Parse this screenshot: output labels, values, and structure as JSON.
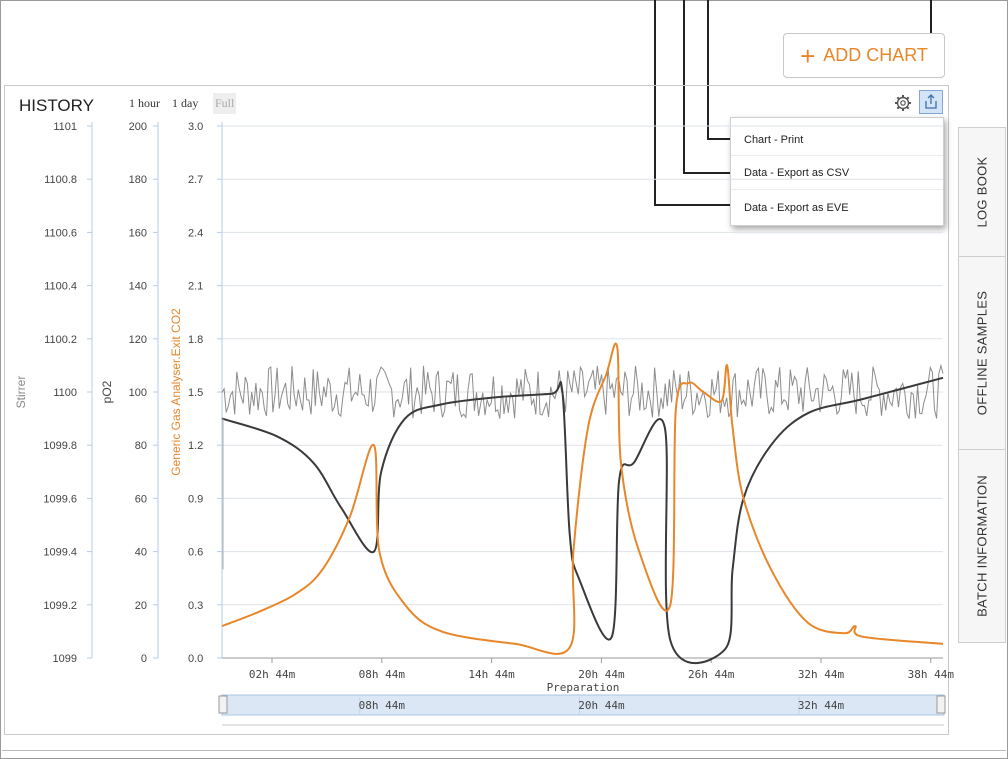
{
  "toolbar": {
    "add_chart_label": "ADD CHART",
    "add_chart_icon": "plus-icon"
  },
  "history": {
    "title": "HISTORY",
    "range_buttons": [
      "1 hour",
      "1 day",
      "Full"
    ],
    "settings_icon": "gear-icon",
    "export_icon": "export-share-icon"
  },
  "export_menu": {
    "items": [
      "Chart - Print",
      "Data - Export as CSV",
      "Data - Export as EVE"
    ]
  },
  "side_tabs": [
    "LOG BOOK",
    "OFFLINE SAMPLES",
    "BATCH INFORMATION"
  ],
  "colors": {
    "accent": "#e8862a",
    "dark_series": "#3a3a3a",
    "noise_series": "#8c8c8c",
    "axis_blue": "#b6cde6"
  },
  "chart_data": {
    "type": "line",
    "xlabel": "Preparation",
    "x_unit": "hours (relative)",
    "x_range": [
      0,
      39.4
    ],
    "x_ticks": [
      "02h 44m",
      "08h 44m",
      "14h 44m",
      "20h 44m",
      "26h 44m",
      "32h 44m",
      "38h 44m"
    ],
    "navigator_labels": [
      "08h 44m",
      "20h 44m",
      "32h 44m"
    ],
    "y_axes": [
      {
        "label": "Stirrer",
        "ylim": [
          1099,
          1101
        ],
        "ticks": [
          "1099",
          "1099.2",
          "1099.4",
          "1099.6",
          "1099.8",
          "1100",
          "1100.2",
          "1100.4",
          "1100.6",
          "1100.8",
          "1101"
        ]
      },
      {
        "label": "pO2",
        "ylim": [
          0,
          200
        ],
        "ticks": [
          "0",
          "20",
          "40",
          "60",
          "80",
          "100",
          "120",
          "140",
          "160",
          "180",
          "200"
        ]
      },
      {
        "label": "Generic Gas Analyser.Exit CO2",
        "ylim": [
          0,
          3
        ],
        "ticks": [
          "0.0",
          "0.3",
          "0.6",
          "0.9",
          "1.2",
          "1.5",
          "1.8",
          "2.1",
          "2.4",
          "2.7",
          "3.0"
        ]
      }
    ],
    "series": [
      {
        "axis": "Generic Gas Analyser.Exit CO2",
        "color": "#e8862a",
        "points": [
          [
            0,
            0.18
          ],
          [
            2,
            0.26
          ],
          [
            4,
            0.36
          ],
          [
            5.5,
            0.5
          ],
          [
            7,
            0.8
          ],
          [
            8.3,
            1.2
          ],
          [
            8.6,
            0.6
          ],
          [
            10,
            0.3
          ],
          [
            12,
            0.15
          ],
          [
            16,
            0.08
          ],
          [
            19,
            0.06
          ],
          [
            19.2,
            0.6
          ],
          [
            20,
            1.3
          ],
          [
            21,
            1.6
          ],
          [
            21.6,
            1.75
          ],
          [
            21.8,
            1.1
          ],
          [
            22.8,
            0.6
          ],
          [
            24.5,
            0.3
          ],
          [
            24.8,
            1.4
          ],
          [
            25.5,
            1.55
          ],
          [
            26.3,
            1.5
          ],
          [
            27.3,
            1.45
          ],
          [
            27.6,
            1.65
          ],
          [
            27.9,
            1.3
          ],
          [
            28.5,
            0.9
          ],
          [
            30,
            0.5
          ],
          [
            32,
            0.2
          ],
          [
            34,
            0.14
          ],
          [
            34.6,
            0.18
          ],
          [
            35,
            0.12
          ],
          [
            39.4,
            0.08
          ]
        ]
      },
      {
        "axis": "Generic Gas Analyser.Exit CO2",
        "color": "#3a3a3a",
        "points": [
          [
            0,
            1.35
          ],
          [
            3,
            1.25
          ],
          [
            5,
            1.1
          ],
          [
            6.5,
            0.85
          ],
          [
            8.3,
            0.6
          ],
          [
            8.7,
            1.05
          ],
          [
            10,
            1.35
          ],
          [
            12,
            1.43
          ],
          [
            15,
            1.47
          ],
          [
            18,
            1.49
          ],
          [
            18.6,
            1.5
          ],
          [
            19,
            0.7
          ],
          [
            19.5,
            0.45
          ],
          [
            21.3,
            0.12
          ],
          [
            21.7,
            1.0
          ],
          [
            22.5,
            1.1
          ],
          [
            24.2,
            1.3
          ],
          [
            24.5,
            0.1
          ],
          [
            27.5,
            0.05
          ],
          [
            27.9,
            0.5
          ],
          [
            28.5,
            0.9
          ],
          [
            30,
            1.2
          ],
          [
            32,
            1.38
          ],
          [
            35,
            1.46
          ],
          [
            39.4,
            1.58
          ]
        ]
      },
      {
        "axis": "Generic Gas Analyser.Exit CO2",
        "color": "#8c8c8c",
        "noise_band": [
          1.38,
          1.68
        ],
        "mean": 1.5
      }
    ]
  }
}
